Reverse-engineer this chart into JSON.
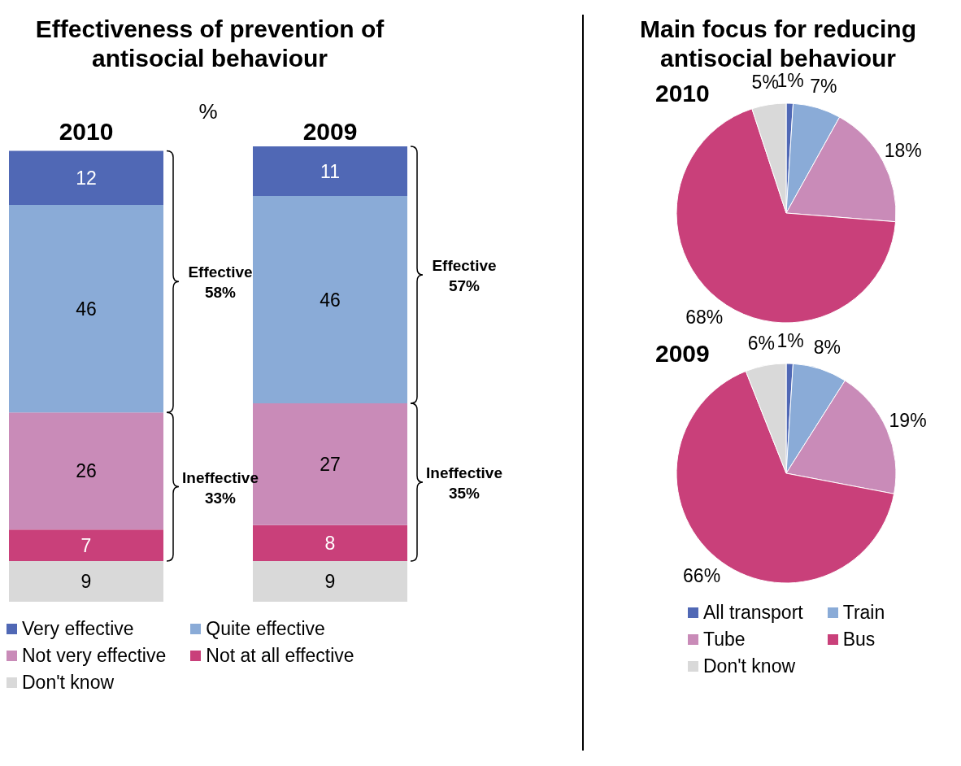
{
  "chart_data": [
    {
      "type": "bar",
      "title": "Effectiveness of prevention of antisocial behaviour",
      "categories": [
        "2010",
        "2009"
      ],
      "stacked": true,
      "data_labels": true,
      "legend": "bottom",
      "series": [
        {
          "name": "Don't know",
          "color": "#d9d9d9",
          "values": [
            9,
            9
          ]
        },
        {
          "name": "Not at all effective",
          "color": "#c9407a",
          "values": [
            7,
            8
          ]
        },
        {
          "name": "Not very effective",
          "color": "#c98bb8",
          "values": [
            26,
            27
          ]
        },
        {
          "name": "Quite effective",
          "color": "#8aabd7",
          "values": [
            46,
            46
          ]
        },
        {
          "name": "Very effective",
          "color": "#5068b5",
          "values": [
            12,
            11
          ]
        }
      ],
      "annotations": [
        "%",
        "Effective\n58%",
        "Ineffective\n33%",
        "Effective\n57%",
        "Ineffective\n35%"
      ]
    },
    {
      "type": "pie",
      "title": "Main focus for reducing antisocial behaviour",
      "subtitle": "2010",
      "categories": [
        null,
        null,
        null,
        null,
        null
      ],
      "values": [
        1,
        7,
        18,
        68,
        5
      ],
      "colors": [
        "#5068b5",
        "#8aabd7",
        "#c98bb8",
        "#c9407a",
        "#d9d9d9"
      ],
      "value_labels": [
        "1%",
        "7%",
        "18%",
        "68%",
        "5%"
      ]
    },
    {
      "type": "pie",
      "subtitle": "2009",
      "categories": [
        "All transport",
        "Train",
        "Tube",
        "Bus",
        "Don't know"
      ],
      "values": [
        1,
        8,
        19,
        66,
        6
      ],
      "colors": [
        "#5068b5",
        "#8aabd7",
        "#c98bb8",
        "#c9407a",
        "#d9d9d9"
      ],
      "value_labels": [
        "1%",
        "8%",
        "19%",
        "66%",
        "6%"
      ],
      "legend": "bottom"
    }
  ]
}
